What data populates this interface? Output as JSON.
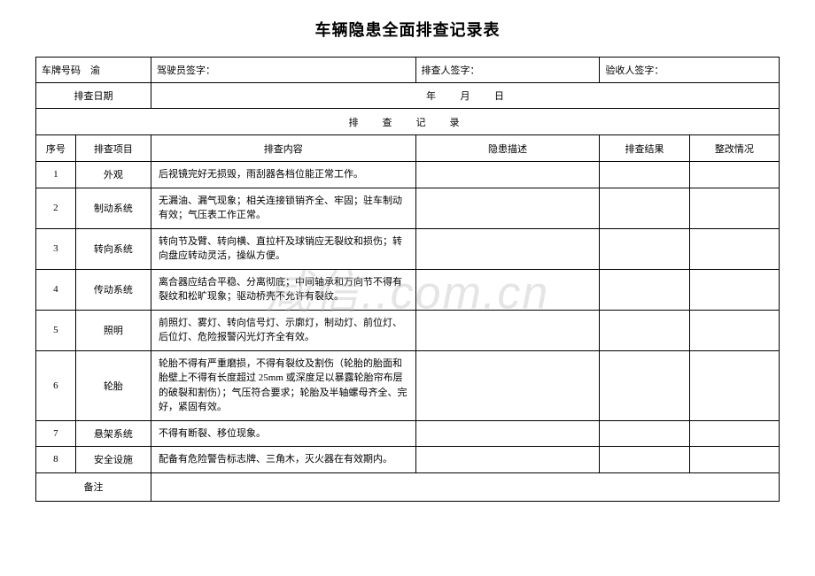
{
  "title": "车辆隐患全面排查记录表",
  "header": {
    "plate_label": "车牌号码",
    "plate_prefix": "渝",
    "driver_label": "驾驶员签字：",
    "inspector_label": "排查人签字：",
    "acceptor_label": "验收人签字："
  },
  "date_row": {
    "label": "排查日期",
    "year": "年",
    "month": "月",
    "day": "日"
  },
  "section_title": "排　查　记　录",
  "columns": {
    "seq": "序号",
    "item": "排查项目",
    "content": "排查内容",
    "desc": "隐患描述",
    "result": "排查结果",
    "fix": "整改情况"
  },
  "rows": [
    {
      "seq": "1",
      "item": "外观",
      "content": "后视镜完好无损毁，雨刮器各档位能正常工作。"
    },
    {
      "seq": "2",
      "item": "制动系统",
      "content": "无漏油、漏气现象；相关连接锁销齐全、牢固；驻车制动有效；气压表工作正常。"
    },
    {
      "seq": "3",
      "item": "转向系统",
      "content": "转向节及臂、转向横、直拉杆及球销应无裂纹和损伤；转向盘应转动灵活，操纵方便。"
    },
    {
      "seq": "4",
      "item": "传动系统",
      "content": "离合器应结合平稳、分离彻底；中间轴承和万向节不得有裂纹和松旷现象；驱动桥壳不允许有裂纹。"
    },
    {
      "seq": "5",
      "item": "照明",
      "content": "前照灯、雾灯、转向信号灯、示廓灯，制动灯、前位灯、后位灯、危险报警闪光灯齐全有效。"
    },
    {
      "seq": "6",
      "item": "轮胎",
      "content": "轮胎不得有严重磨损，不得有裂纹及割伤（轮胎的胎面和胎壁上不得有长度超过 25mm 或深度足以暴露轮胎帘布层的破裂和割伤）；气压符合要求；轮胎及半轴螺母齐全、完好，紧固有效。"
    },
    {
      "seq": "7",
      "item": "悬架系统",
      "content": "不得有断裂、移位现象。"
    },
    {
      "seq": "8",
      "item": "安全设施",
      "content": "配备有危险警告标志牌、三角木，灭火器在有效期内。"
    }
  ],
  "remark_label": "备注",
  "watermark": "咸信..com.cn",
  "styling": {
    "background_color": "#ffffff",
    "border_color": "#000000",
    "text_color": "#000000",
    "title_fontsize": 18,
    "cell_fontsize": 11,
    "watermark_color": "rgba(180,180,180,0.35)",
    "font_family": "SimSun"
  }
}
